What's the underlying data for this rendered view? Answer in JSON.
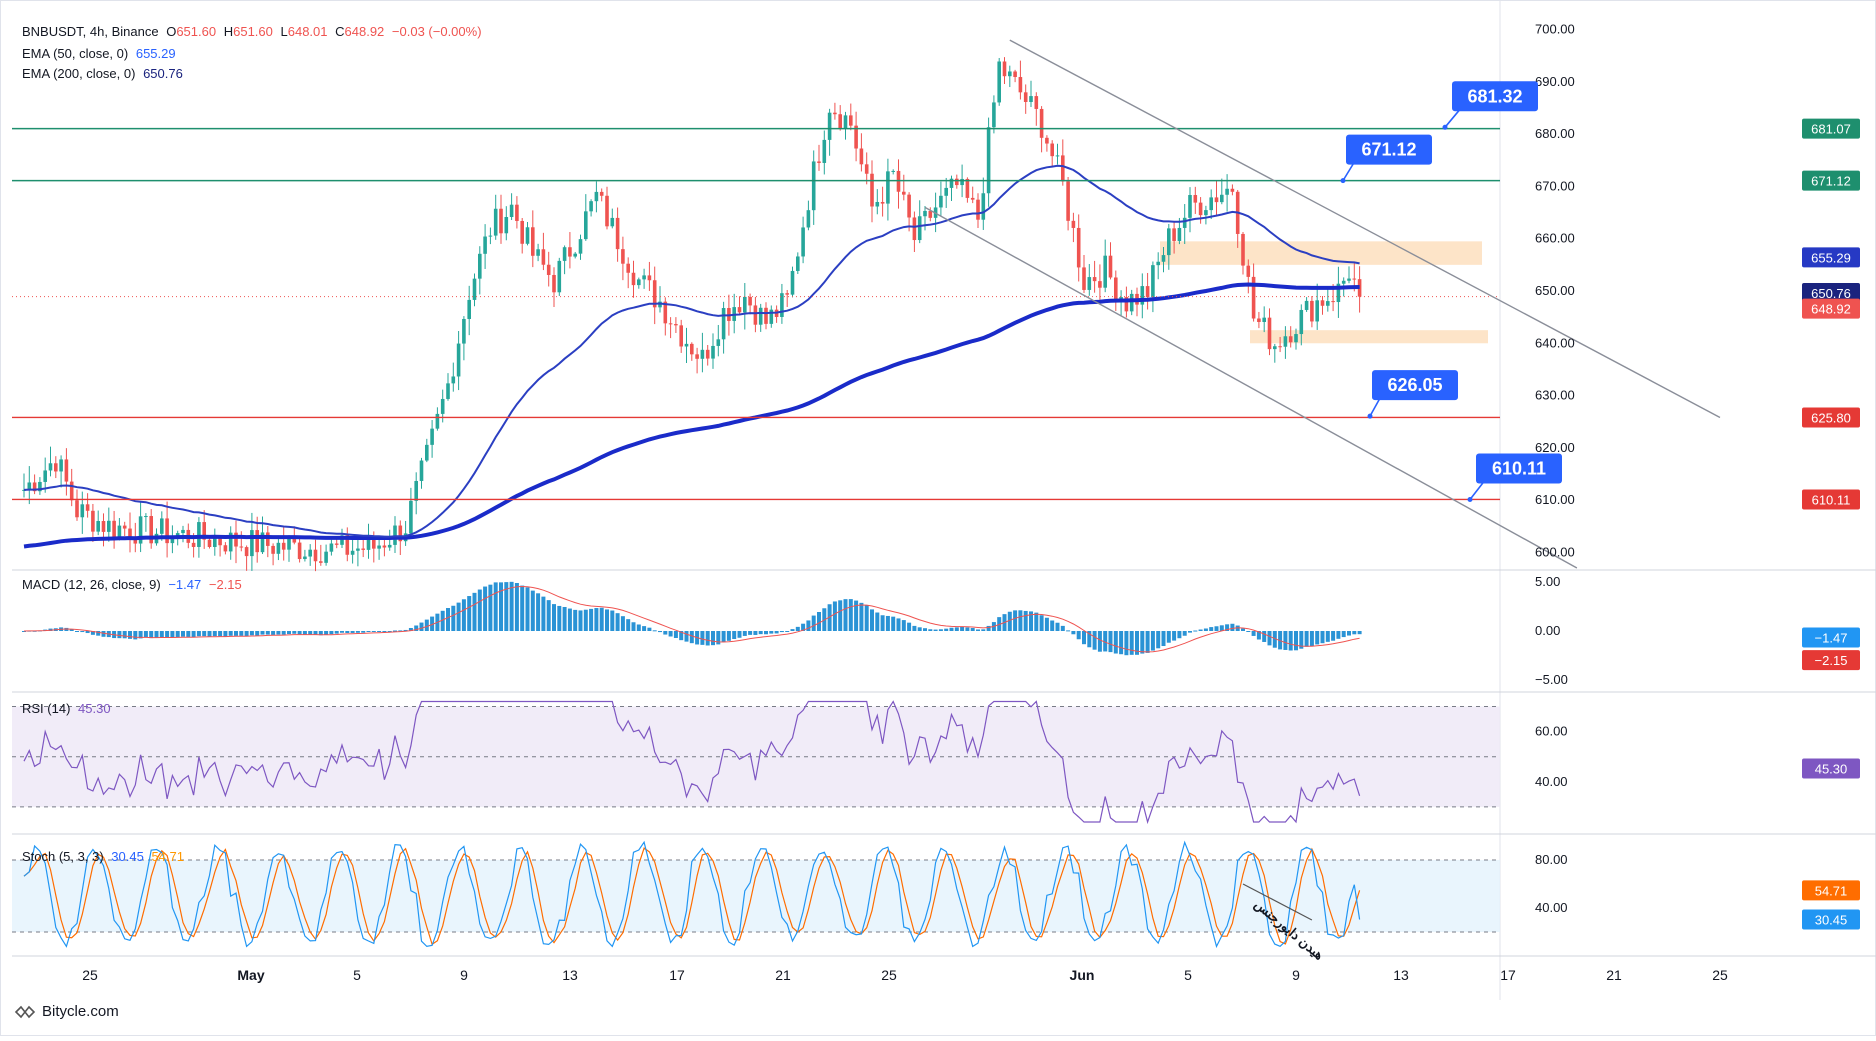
{
  "header": {
    "symbol": "BNBUSDT, 4h, Binance",
    "o_label": "O",
    "o": "651.60",
    "h_label": "H",
    "h": "651.60",
    "l_label": "L",
    "l": "648.01",
    "c_label": "C",
    "c": "648.92",
    "change": "−0.03 (−0.00%)",
    "ema50_label": "EMA (50, close, 0)",
    "ema50_value": "655.29",
    "ema200_label": "EMA (200, close, 0)",
    "ema200_value": "650.76"
  },
  "colors": {
    "up": "#26a69a",
    "down": "#ef5350",
    "ema50": "#2b3fc2",
    "ema200": "#1a2bc9",
    "accent": "#2962ff",
    "resistance": "#26a69a",
    "support": "#ef5350",
    "rsi": "#7e57c2",
    "stoch_k": "#2196f3",
    "stoch_d": "#ff6d00",
    "zone": "#fde1c2"
  },
  "chart_data": {
    "type": "candlestick",
    "title": "BNBUSDT, 4h, Binance",
    "price_axis": {
      "ylim": [
        597,
        703
      ],
      "ticks": [
        "700.00",
        "690.00",
        "680.00",
        "670.00",
        "660.00",
        "650.00",
        "640.00",
        "630.00",
        "620.00",
        "610.00",
        "600.00"
      ]
    },
    "x_labels": [
      "25",
      "May",
      "5",
      "9",
      "13",
      "17",
      "21",
      "25",
      "Jun",
      "5",
      "9",
      "13",
      "17",
      "21",
      "25"
    ],
    "price_path": [
      [
        0,
        612
      ],
      [
        6,
        618
      ],
      [
        10,
        608
      ],
      [
        16,
        605
      ],
      [
        24,
        604
      ],
      [
        32,
        603
      ],
      [
        40,
        602
      ],
      [
        50,
        601
      ],
      [
        60,
        600.5
      ],
      [
        66,
        601
      ],
      [
        72,
        605
      ],
      [
        76,
        618
      ],
      [
        80,
        632
      ],
      [
        84,
        650
      ],
      [
        88,
        662
      ],
      [
        92,
        666
      ],
      [
        96,
        657
      ],
      [
        100,
        652
      ],
      [
        104,
        660
      ],
      [
        108,
        668
      ],
      [
        112,
        660
      ],
      [
        116,
        652
      ],
      [
        120,
        648
      ],
      [
        124,
        642
      ],
      [
        128,
        637
      ],
      [
        132,
        646
      ],
      [
        136,
        649
      ],
      [
        140,
        644
      ],
      [
        144,
        648
      ],
      [
        148,
        668
      ],
      [
        152,
        686
      ],
      [
        156,
        682
      ],
      [
        160,
        666
      ],
      [
        164,
        672
      ],
      [
        168,
        660
      ],
      [
        172,
        666
      ],
      [
        176,
        670
      ],
      [
        180,
        664
      ],
      [
        184,
        693
      ],
      [
        188,
        688
      ],
      [
        192,
        682
      ],
      [
        196,
        670
      ],
      [
        200,
        652
      ],
      [
        204,
        654
      ],
      [
        208,
        648
      ],
      [
        212,
        650
      ],
      [
        216,
        660
      ],
      [
        220,
        666
      ],
      [
        224,
        668
      ],
      [
        228,
        670
      ],
      [
        232,
        645
      ],
      [
        236,
        640
      ],
      [
        240,
        644
      ],
      [
        244,
        648
      ],
      [
        248,
        650
      ],
      [
        250,
        654
      ],
      [
        252,
        649
      ]
    ],
    "series": [
      {
        "name": "EMA 50",
        "last": 655.29
      },
      {
        "name": "EMA 200",
        "last": 650.76
      }
    ],
    "last_price": 648.92,
    "horizontal_levels": [
      {
        "value": 681.07,
        "label": "681.07",
        "kind": "resistance"
      },
      {
        "value": 671.12,
        "label": "671.12",
        "kind": "resistance"
      },
      {
        "value": 625.8,
        "label": "625.80",
        "kind": "support"
      },
      {
        "value": 610.11,
        "label": "610.11",
        "kind": "support"
      }
    ],
    "callouts": [
      {
        "text": "681.32",
        "value": 681.32
      },
      {
        "text": "671.12",
        "value": 671.12
      },
      {
        "text": "626.05",
        "value": 626.05
      },
      {
        "text": "610.11",
        "value": 610.11
      }
    ],
    "zones": [
      {
        "from": 655,
        "to": 659.5
      },
      {
        "from": 640,
        "to": 642.5
      }
    ],
    "channel": {
      "upper": {
        "start": [
          186,
          698
        ],
        "end": [
          320,
          625.8
        ]
      },
      "lower": {
        "start": [
          170,
          666
        ],
        "end": [
          293,
          597
        ]
      }
    },
    "price_badges": [
      {
        "text": "681.07",
        "kind": "resistance"
      },
      {
        "text": "671.12",
        "kind": "resistance"
      },
      {
        "text": "655.29",
        "kind": "ema50"
      },
      {
        "text": "650.76",
        "kind": "ema200"
      },
      {
        "text": "648.92",
        "kind": "last"
      },
      {
        "text": "625.80",
        "kind": "support"
      },
      {
        "text": "610.11",
        "kind": "support"
      }
    ],
    "indicators": {
      "macd": {
        "label": "MACD (12, 26, close, 9)",
        "macd": "−1.47",
        "signal": "−2.15",
        "ylim": [
          -6,
          6
        ],
        "ticks": [
          "5.00",
          "0.00",
          "−5.00"
        ],
        "badges": [
          "−1.47",
          "−2.15"
        ]
      },
      "rsi": {
        "label": "RSI (14)",
        "value": "45.30",
        "ylim": [
          20,
          75
        ],
        "ticks": [
          "60.00",
          "40.00"
        ],
        "bands": [
          70,
          50,
          30
        ],
        "badge": "45.30"
      },
      "stoch": {
        "label": "Stoch (5, 3, 3)",
        "k": "30.45",
        "d": "54.71",
        "ylim": [
          5,
          100
        ],
        "ticks": [
          "80.00",
          "40.00"
        ],
        "bands": [
          80,
          20
        ],
        "badges": [
          "54.71",
          "30.45"
        ],
        "annotation": "هیدن دایورجنس"
      }
    }
  },
  "footer": {
    "brand": "Bitycle.com"
  }
}
